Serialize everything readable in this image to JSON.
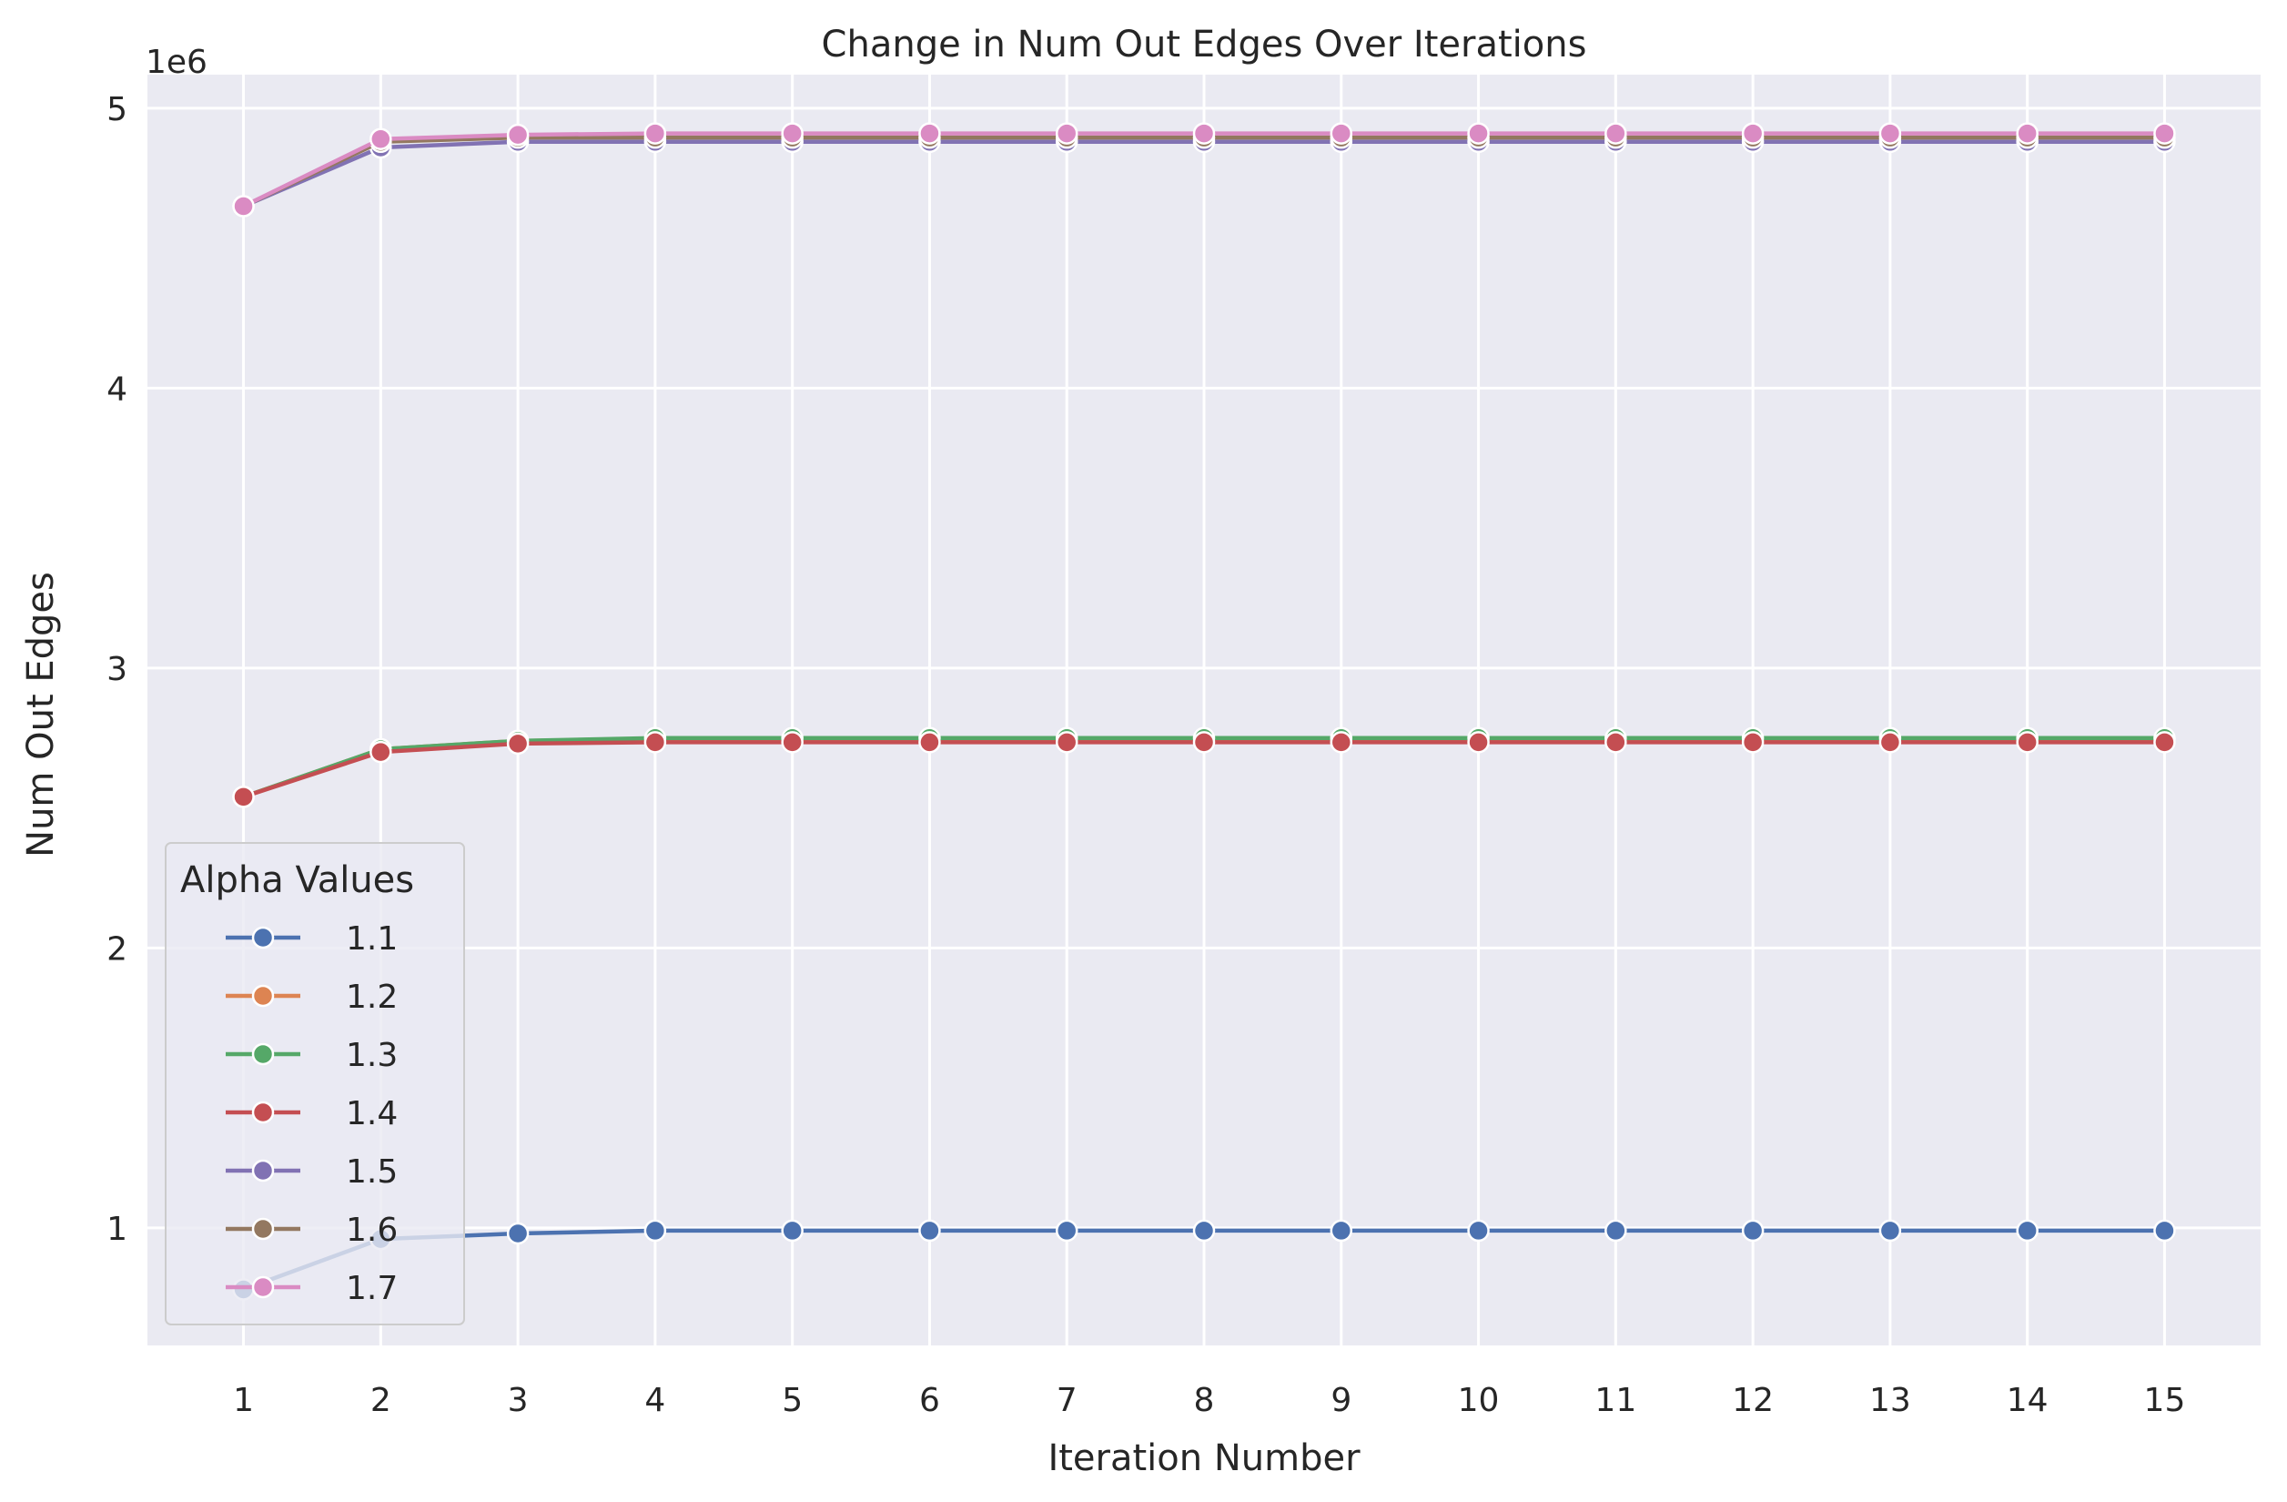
{
  "chart_data": {
    "type": "line",
    "title": "Change in Num Out Edges Over Iterations",
    "xlabel": "Iteration Number",
    "ylabel": "Num Out Edges",
    "y_offset_label": "1e6",
    "x": [
      1,
      2,
      3,
      4,
      5,
      6,
      7,
      8,
      9,
      10,
      11,
      12,
      13,
      14,
      15
    ],
    "xlim": [
      0.3,
      15.7
    ],
    "ylim": [
      0.58,
      5.12
    ],
    "y_ticks": [
      1,
      2,
      3,
      4,
      5
    ],
    "grid": true,
    "legend": {
      "title": "Alpha Values",
      "placement": "lower-left"
    },
    "background": "#eaeaf2",
    "series": [
      {
        "name": "1.1",
        "color": "#4c72b0",
        "values": [
          0.78,
          0.96,
          0.98,
          0.99,
          0.99,
          0.99,
          0.99,
          0.99,
          0.99,
          0.99,
          0.99,
          0.99,
          0.99,
          0.99,
          0.99
        ]
      },
      {
        "name": "1.2",
        "color": "#dd8452",
        "values": [
          2.54,
          2.71,
          2.74,
          2.745,
          2.745,
          2.745,
          2.745,
          2.745,
          2.745,
          2.745,
          2.745,
          2.745,
          2.745,
          2.745,
          2.745
        ]
      },
      {
        "name": "1.3",
        "color": "#55a868",
        "values": [
          2.54,
          2.71,
          2.74,
          2.75,
          2.75,
          2.75,
          2.75,
          2.75,
          2.75,
          2.75,
          2.75,
          2.75,
          2.75,
          2.75,
          2.75
        ]
      },
      {
        "name": "1.4",
        "color": "#c44e52",
        "values": [
          2.54,
          2.7,
          2.73,
          2.735,
          2.735,
          2.735,
          2.735,
          2.735,
          2.735,
          2.735,
          2.735,
          2.735,
          2.735,
          2.735,
          2.735
        ]
      },
      {
        "name": "1.5",
        "color": "#8172b3",
        "values": [
          4.65,
          4.86,
          4.88,
          4.88,
          4.88,
          4.88,
          4.88,
          4.88,
          4.88,
          4.88,
          4.88,
          4.88,
          4.88,
          4.88,
          4.88
        ]
      },
      {
        "name": "1.6",
        "color": "#937860",
        "values": [
          4.65,
          4.88,
          4.895,
          4.895,
          4.895,
          4.895,
          4.895,
          4.895,
          4.895,
          4.895,
          4.895,
          4.895,
          4.895,
          4.895,
          4.895
        ]
      },
      {
        "name": "1.7",
        "color": "#da8bc3",
        "values": [
          4.65,
          4.89,
          4.905,
          4.91,
          4.91,
          4.91,
          4.91,
          4.91,
          4.91,
          4.91,
          4.91,
          4.91,
          4.91,
          4.91,
          4.91
        ]
      }
    ]
  }
}
